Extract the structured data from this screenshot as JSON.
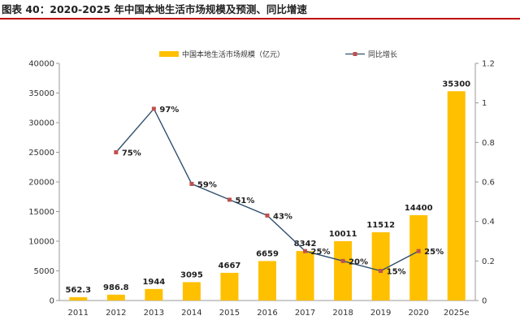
{
  "header": {
    "title": "图表 40：2020-2025 年中国本地生活市场规模及预测、同比增速"
  },
  "colors": {
    "bar": "#ffc000",
    "line": "#2f4f6f",
    "marker": "#c0504d",
    "axis": "#9a9a9a",
    "accent_rule": "#c00000"
  },
  "chart_data": {
    "type": "bar",
    "title": "图表 40：2020-2025 年中国本地生活市场规模及预测、同比增速",
    "categories": [
      "2011",
      "2012",
      "2013",
      "2014",
      "2015",
      "2016",
      "2017",
      "2018",
      "2019",
      "2020",
      "2025e"
    ],
    "series": [
      {
        "name": "中国本地生活市场规模（亿元）",
        "type": "bar",
        "axis": "left",
        "values": [
          562.3,
          986.8,
          1944,
          3095,
          4667,
          6659,
          8342,
          10011,
          11512,
          14400,
          35300
        ],
        "labels": [
          "562.3",
          "986.8",
          "1944",
          "3095",
          "4667",
          "6659",
          "8342",
          "10011",
          "11512",
          "14400",
          "35300"
        ]
      },
      {
        "name": "同比增长",
        "type": "line",
        "axis": "right",
        "values": [
          null,
          0.75,
          0.97,
          0.59,
          0.51,
          0.43,
          0.25,
          0.2,
          0.15,
          0.25,
          null
        ],
        "labels": [
          "",
          "75%",
          "97%",
          "59%",
          "51%",
          "43%",
          "25%",
          "20%",
          "15%",
          "25%",
          ""
        ]
      }
    ],
    "y_left": {
      "ylim": [
        0,
        40000
      ],
      "ticks": [
        "0",
        "5000",
        "10000",
        "15000",
        "20000",
        "25000",
        "30000",
        "35000",
        "40000"
      ]
    },
    "y_right": {
      "ylim": [
        0,
        1.2
      ],
      "ticks": [
        "0",
        "0.2",
        "0.4",
        "0.6",
        "0.8",
        "1",
        "1.2"
      ]
    },
    "xlabel": "",
    "ylabel": "",
    "grid": false,
    "legend": "top"
  }
}
